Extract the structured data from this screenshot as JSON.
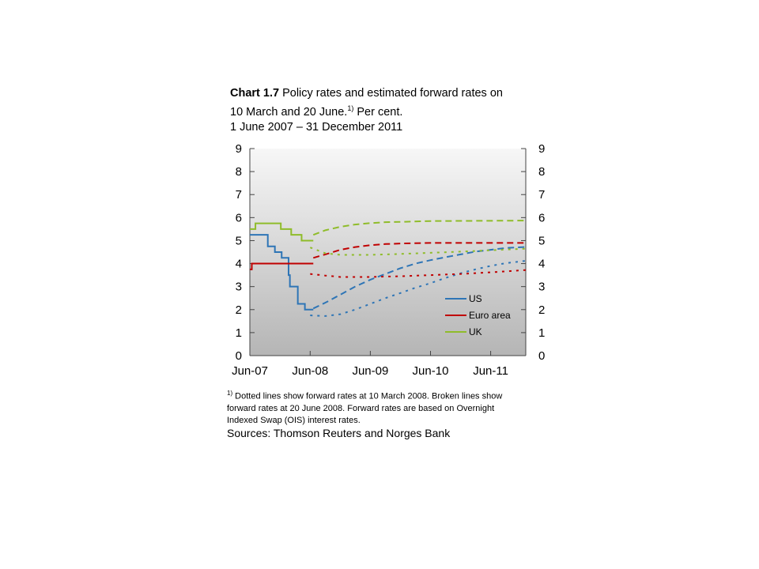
{
  "title": {
    "label": "Chart 1.7",
    "line1": "Policy rates and estimated forward rates on",
    "line2": "10 March and 20 June.",
    "line2_sup": "1)",
    "line2_end": " Per cent.",
    "line3": "1 June 2007 – 31 December 2011"
  },
  "footnote": {
    "sup": "1)",
    "text": " Dotted lines show forward rates at 10 March 2008. Broken lines show forward rates at 20 June 2008. Forward rates are based on Overnight Indexed Swap (OIS) interest rates."
  },
  "sources": "Sources: Thomson Reuters and Norges Bank",
  "chart_data": {
    "type": "line",
    "x_axis": {
      "type": "date",
      "range": [
        "2007-06-01",
        "2011-12-31"
      ],
      "tick_labels": [
        "Jun-07",
        "Jun-08",
        "Jun-09",
        "Jun-10",
        "Jun-11"
      ],
      "tick_dates": [
        "2007-06-01",
        "2008-06-01",
        "2009-06-01",
        "2010-06-01",
        "2011-06-01"
      ]
    },
    "y_axis_left": {
      "range": [
        0,
        9
      ],
      "ticks": [
        0,
        1,
        2,
        3,
        4,
        5,
        6,
        7,
        8,
        9
      ]
    },
    "y_axis_right": {
      "range": [
        0,
        9
      ],
      "ticks": [
        0,
        1,
        2,
        3,
        4,
        5,
        6,
        7,
        8,
        9
      ]
    },
    "grid": false,
    "background": "gradient light-to-gray",
    "legend": {
      "placement": "bottom-right",
      "entries": [
        {
          "label": "US",
          "color": "#2e75b6"
        },
        {
          "label": "Euro area",
          "color": "#c00000"
        },
        {
          "label": "UK",
          "color": "#8fbc2a"
        }
      ]
    },
    "series": [
      {
        "name": "US",
        "color": "#2e75b6",
        "style": "solid",
        "step": true,
        "points": [
          [
            "2007-06-01",
            5.25
          ],
          [
            "2007-09-18",
            4.75
          ],
          [
            "2007-10-31",
            4.5
          ],
          [
            "2007-12-11",
            4.25
          ],
          [
            "2008-01-22",
            3.5
          ],
          [
            "2008-01-30",
            3.0
          ],
          [
            "2008-03-18",
            2.25
          ],
          [
            "2008-04-30",
            2.0
          ],
          [
            "2008-06-20",
            2.0
          ]
        ]
      },
      {
        "name": "Euro area",
        "color": "#c00000",
        "style": "solid",
        "step": true,
        "points": [
          [
            "2007-06-01",
            3.75
          ],
          [
            "2007-06-13",
            4.0
          ],
          [
            "2008-06-20",
            4.0
          ]
        ]
      },
      {
        "name": "UK",
        "color": "#8fbc2a",
        "style": "solid",
        "step": true,
        "points": [
          [
            "2007-06-01",
            5.5
          ],
          [
            "2007-07-05",
            5.75
          ],
          [
            "2007-12-06",
            5.5
          ],
          [
            "2008-02-07",
            5.25
          ],
          [
            "2008-04-10",
            5.0
          ],
          [
            "2008-06-20",
            5.0
          ]
        ]
      },
      {
        "name": "US",
        "color": "#2e75b6",
        "style": "dashed",
        "forecast": "20 June 2008",
        "points": [
          [
            "2008-06-20",
            2.05
          ],
          [
            "2008-09-01",
            2.3
          ],
          [
            "2008-12-01",
            2.65
          ],
          [
            "2009-03-01",
            3.0
          ],
          [
            "2009-06-01",
            3.3
          ],
          [
            "2009-09-01",
            3.55
          ],
          [
            "2009-12-01",
            3.8
          ],
          [
            "2010-03-01",
            4.0
          ],
          [
            "2010-06-01",
            4.15
          ],
          [
            "2010-09-01",
            4.28
          ],
          [
            "2010-12-01",
            4.4
          ],
          [
            "2011-03-01",
            4.52
          ],
          [
            "2011-06-01",
            4.6
          ],
          [
            "2011-09-01",
            4.68
          ],
          [
            "2011-12-31",
            4.72
          ]
        ]
      },
      {
        "name": "Euro area",
        "color": "#c00000",
        "style": "dashed",
        "forecast": "20 June 2008",
        "points": [
          [
            "2008-06-20",
            4.25
          ],
          [
            "2008-09-01",
            4.4
          ],
          [
            "2008-12-01",
            4.6
          ],
          [
            "2009-03-01",
            4.72
          ],
          [
            "2009-06-01",
            4.8
          ],
          [
            "2009-09-01",
            4.85
          ],
          [
            "2010-01-01",
            4.88
          ],
          [
            "2010-06-01",
            4.9
          ],
          [
            "2011-12-31",
            4.9
          ]
        ]
      },
      {
        "name": "UK",
        "color": "#8fbc2a",
        "style": "dashed",
        "forecast": "20 June 2008",
        "points": [
          [
            "2008-06-20",
            5.25
          ],
          [
            "2008-09-01",
            5.45
          ],
          [
            "2008-12-01",
            5.6
          ],
          [
            "2009-03-01",
            5.7
          ],
          [
            "2009-06-01",
            5.76
          ],
          [
            "2009-09-01",
            5.8
          ],
          [
            "2010-01-01",
            5.82
          ],
          [
            "2010-06-01",
            5.85
          ],
          [
            "2011-12-31",
            5.87
          ]
        ]
      },
      {
        "name": "US",
        "color": "#2e75b6",
        "style": "dotted",
        "forecast": "10 March 2008",
        "points": [
          [
            "2008-06-01",
            1.75
          ],
          [
            "2008-09-01",
            1.72
          ],
          [
            "2008-12-01",
            1.8
          ],
          [
            "2009-03-01",
            2.0
          ],
          [
            "2009-06-01",
            2.25
          ],
          [
            "2009-09-01",
            2.5
          ],
          [
            "2009-12-01",
            2.72
          ],
          [
            "2010-03-01",
            2.95
          ],
          [
            "2010-06-01",
            3.15
          ],
          [
            "2010-09-01",
            3.38
          ],
          [
            "2010-12-01",
            3.58
          ],
          [
            "2011-03-01",
            3.75
          ],
          [
            "2011-06-01",
            3.9
          ],
          [
            "2011-09-01",
            4.02
          ],
          [
            "2011-12-31",
            4.12
          ]
        ]
      },
      {
        "name": "Euro area",
        "color": "#c00000",
        "style": "dotted",
        "forecast": "10 March 2008",
        "points": [
          [
            "2008-06-01",
            3.55
          ],
          [
            "2008-09-01",
            3.48
          ],
          [
            "2008-12-01",
            3.42
          ],
          [
            "2009-06-01",
            3.42
          ],
          [
            "2009-12-01",
            3.45
          ],
          [
            "2010-06-01",
            3.5
          ],
          [
            "2010-12-01",
            3.55
          ],
          [
            "2011-06-01",
            3.62
          ],
          [
            "2011-12-31",
            3.72
          ]
        ]
      },
      {
        "name": "UK",
        "color": "#8fbc2a",
        "style": "dotted",
        "forecast": "10 March 2008",
        "points": [
          [
            "2008-06-01",
            4.7
          ],
          [
            "2008-09-01",
            4.45
          ],
          [
            "2008-12-01",
            4.38
          ],
          [
            "2009-06-01",
            4.38
          ],
          [
            "2009-12-01",
            4.42
          ],
          [
            "2010-06-01",
            4.47
          ],
          [
            "2010-12-01",
            4.52
          ],
          [
            "2011-06-01",
            4.58
          ],
          [
            "2011-12-31",
            4.65
          ]
        ]
      }
    ]
  }
}
